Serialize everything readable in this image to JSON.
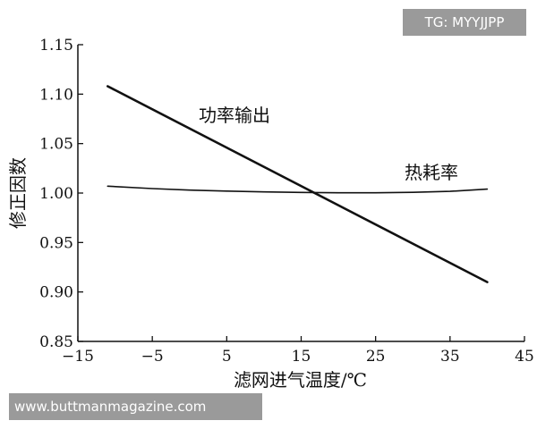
{
  "watermarks": {
    "top_right": "TG: MYYJJPP",
    "bottom_left": "www.buttmanmagazine.com"
  },
  "chart_data": {
    "type": "line",
    "xlabel": "滤网进气温度/℃",
    "ylabel": "修正因数",
    "xlim": [
      -15,
      45
    ],
    "ylim": [
      0.85,
      1.15
    ],
    "xticks": [
      -15,
      -5,
      5,
      15,
      25,
      35,
      45
    ],
    "xtick_labels": [
      "−15",
      "−5",
      "5",
      "15",
      "25",
      "35",
      "45"
    ],
    "yticks": [
      0.85,
      0.9,
      0.95,
      1.0,
      1.05,
      1.1,
      1.15
    ],
    "ytick_labels": [
      "0.85",
      "0.90",
      "0.95",
      "1.00",
      "1.05",
      "1.10",
      "1.15"
    ],
    "grid": false,
    "series": [
      {
        "name": "功率输出",
        "x": [
          -11,
          40
        ],
        "y": [
          1.108,
          0.91
        ],
        "stroke_width": 2.6
      },
      {
        "name": "热耗率",
        "x": [
          -11,
          -5,
          0,
          5,
          10,
          15,
          20,
          25,
          30,
          35,
          40
        ],
        "y": [
          1.007,
          1.0045,
          1.003,
          1.002,
          1.0012,
          1.0006,
          1.0003,
          1.0003,
          1.0007,
          1.0017,
          1.004
        ],
        "stroke_width": 1.6
      }
    ],
    "annotations": [
      {
        "text": "功率输出",
        "series": 0
      },
      {
        "text": "热耗率",
        "series": 1
      }
    ]
  }
}
